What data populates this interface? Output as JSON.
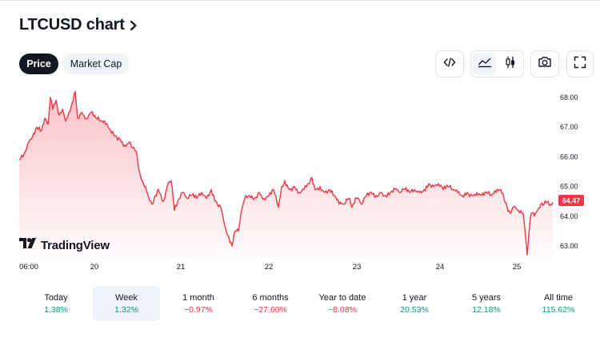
{
  "header": {
    "title": "LTCUSD chart",
    "title_icon": "chevron-right-icon"
  },
  "tabs": [
    {
      "label": "Price",
      "active": true
    },
    {
      "label": "Market Cap",
      "active": false
    }
  ],
  "toolbar": {
    "embed_icon": "code-icon",
    "area_icon": "area-chart-icon",
    "candles_icon": "candlestick-icon",
    "snapshot_icon": "camera-icon",
    "fullscreen_icon": "fullscreen-icon",
    "selected_style": "area"
  },
  "chart": {
    "type": "area",
    "line_color": "#f23645",
    "y_ticks": [
      "68.00",
      "67.00",
      "66.00",
      "65.00",
      "64.00",
      "63.00"
    ],
    "x_ticks": [
      "06:00",
      "20",
      "21",
      "22",
      "23",
      "24",
      "25"
    ],
    "last_price": "64.47",
    "ylim": [
      62.7,
      68.4
    ]
  },
  "watermark": {
    "brand": "TradingView",
    "logo_icon": "tradingview-logo-icon"
  },
  "periods": [
    {
      "label": "Today",
      "value": "1.38%",
      "direction": "up",
      "selected": false
    },
    {
      "label": "Week",
      "value": "1.32%",
      "direction": "up",
      "selected": true
    },
    {
      "label": "1 month",
      "value": "−0.97%",
      "direction": "down",
      "selected": false
    },
    {
      "label": "6 months",
      "value": "−27.60%",
      "direction": "down",
      "selected": false
    },
    {
      "label": "Year to date",
      "value": "−8.08%",
      "direction": "down",
      "selected": false
    },
    {
      "label": "1 year",
      "value": "20.53%",
      "direction": "up",
      "selected": false
    },
    {
      "label": "5 years",
      "value": "12.18%",
      "direction": "up",
      "selected": false
    },
    {
      "label": "All time",
      "value": "115.62%",
      "direction": "up",
      "selected": false
    }
  ]
}
